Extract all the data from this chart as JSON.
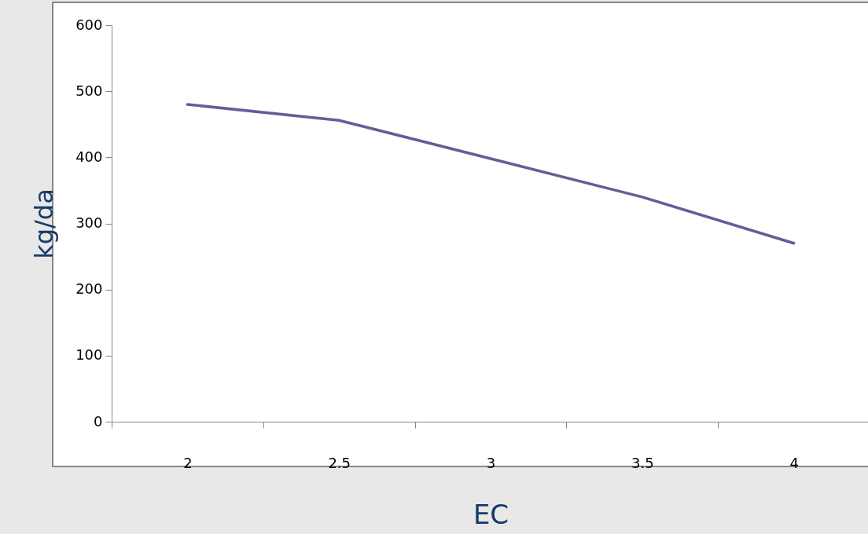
{
  "chart_data": {
    "type": "line",
    "xlabel": "EC",
    "ylabel": "kg/da",
    "categories": [
      "2",
      "2.5",
      "3",
      "3.5",
      "4"
    ],
    "series": [
      {
        "color": "#5f5f9a",
        "values": [
          480,
          456,
          398,
          340,
          270
        ]
      }
    ],
    "ylim": [
      0,
      600
    ],
    "yticks": [
      0,
      100,
      200,
      300,
      400,
      500,
      600
    ],
    "grid": false
  }
}
